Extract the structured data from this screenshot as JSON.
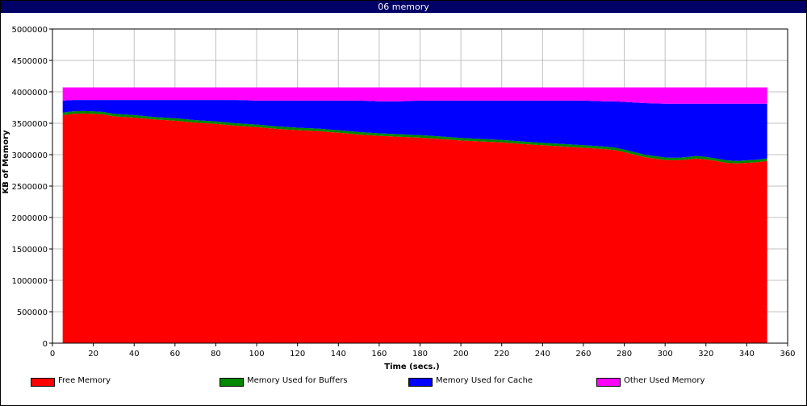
{
  "window": {
    "title": "06 memory"
  },
  "chart_data": {
    "type": "area",
    "stacked": true,
    "title": "06 memory",
    "xlabel": "Time (secs.)",
    "ylabel": "KB of Memory",
    "xlim": [
      0,
      360
    ],
    "ylim": [
      0,
      5000000
    ],
    "xticks": [
      0,
      20,
      40,
      60,
      80,
      100,
      120,
      140,
      160,
      180,
      200,
      220,
      240,
      260,
      280,
      300,
      320,
      340,
      360
    ],
    "yticks": [
      0,
      500000,
      1000000,
      1500000,
      2000000,
      2500000,
      3000000,
      3500000,
      4000000,
      4500000,
      5000000
    ],
    "grid": true,
    "legend_position": "bottom",
    "x": [
      5,
      10,
      15,
      20,
      25,
      30,
      40,
      50,
      60,
      70,
      80,
      90,
      100,
      110,
      120,
      130,
      140,
      150,
      160,
      170,
      180,
      190,
      200,
      210,
      220,
      230,
      240,
      250,
      260,
      270,
      275,
      280,
      290,
      300,
      305,
      310,
      315,
      320,
      325,
      330,
      335,
      340,
      345,
      350
    ],
    "series": [
      {
        "name": "Free Memory",
        "color": "#ff0000",
        "values": [
          3630000,
          3650000,
          3655000,
          3650000,
          3640000,
          3610000,
          3590000,
          3560000,
          3540000,
          3510000,
          3490000,
          3460000,
          3440000,
          3410000,
          3390000,
          3375000,
          3350000,
          3320000,
          3300000,
          3285000,
          3270000,
          3250000,
          3225000,
          3210000,
          3195000,
          3170000,
          3150000,
          3130000,
          3110000,
          3090000,
          3075000,
          3040000,
          2960000,
          2915000,
          2910000,
          2920000,
          2940000,
          2925000,
          2900000,
          2870000,
          2860000,
          2870000,
          2880000,
          2900000
        ]
      },
      {
        "name": "Memory Used for Buffers",
        "color": "#008800",
        "values": [
          40000,
          40000,
          40000,
          40000,
          40000,
          40000,
          40000,
          40000,
          40000,
          40000,
          40000,
          40000,
          40000,
          40000,
          40000,
          40000,
          40000,
          40000,
          40000,
          40000,
          40000,
          40000,
          40000,
          40000,
          40000,
          40000,
          40000,
          40000,
          40000,
          40000,
          40000,
          40000,
          40000,
          40000,
          40000,
          40000,
          40000,
          40000,
          40000,
          40000,
          40000,
          40000,
          40000,
          40000
        ]
      },
      {
        "name": "Memory Used for Cache",
        "color": "#0000ff",
        "values": [
          190000,
          180000,
          175000,
          180000,
          190000,
          220000,
          240000,
          270000,
          290000,
          320000,
          340000,
          370000,
          380000,
          410000,
          430000,
          445000,
          470000,
          500000,
          510000,
          525000,
          550000,
          570000,
          595000,
          610000,
          625000,
          650000,
          670000,
          690000,
          710000,
          720000,
          735000,
          760000,
          820000,
          855000,
          860000,
          850000,
          830000,
          845000,
          870000,
          900000,
          910000,
          900000,
          890000,
          870000
        ]
      },
      {
        "name": "Other Used Memory",
        "color": "#ff00ff",
        "values": [
          210000,
          200000,
          200000,
          200000,
          200000,
          200000,
          200000,
          200000,
          200000,
          200000,
          200000,
          200000,
          210000,
          210000,
          210000,
          210000,
          210000,
          210000,
          220000,
          220000,
          210000,
          210000,
          210000,
          210000,
          210000,
          210000,
          210000,
          210000,
          210000,
          220000,
          220000,
          230000,
          250000,
          260000,
          260000,
          260000,
          260000,
          260000,
          260000,
          260000,
          260000,
          260000,
          260000,
          260000
        ]
      }
    ]
  }
}
